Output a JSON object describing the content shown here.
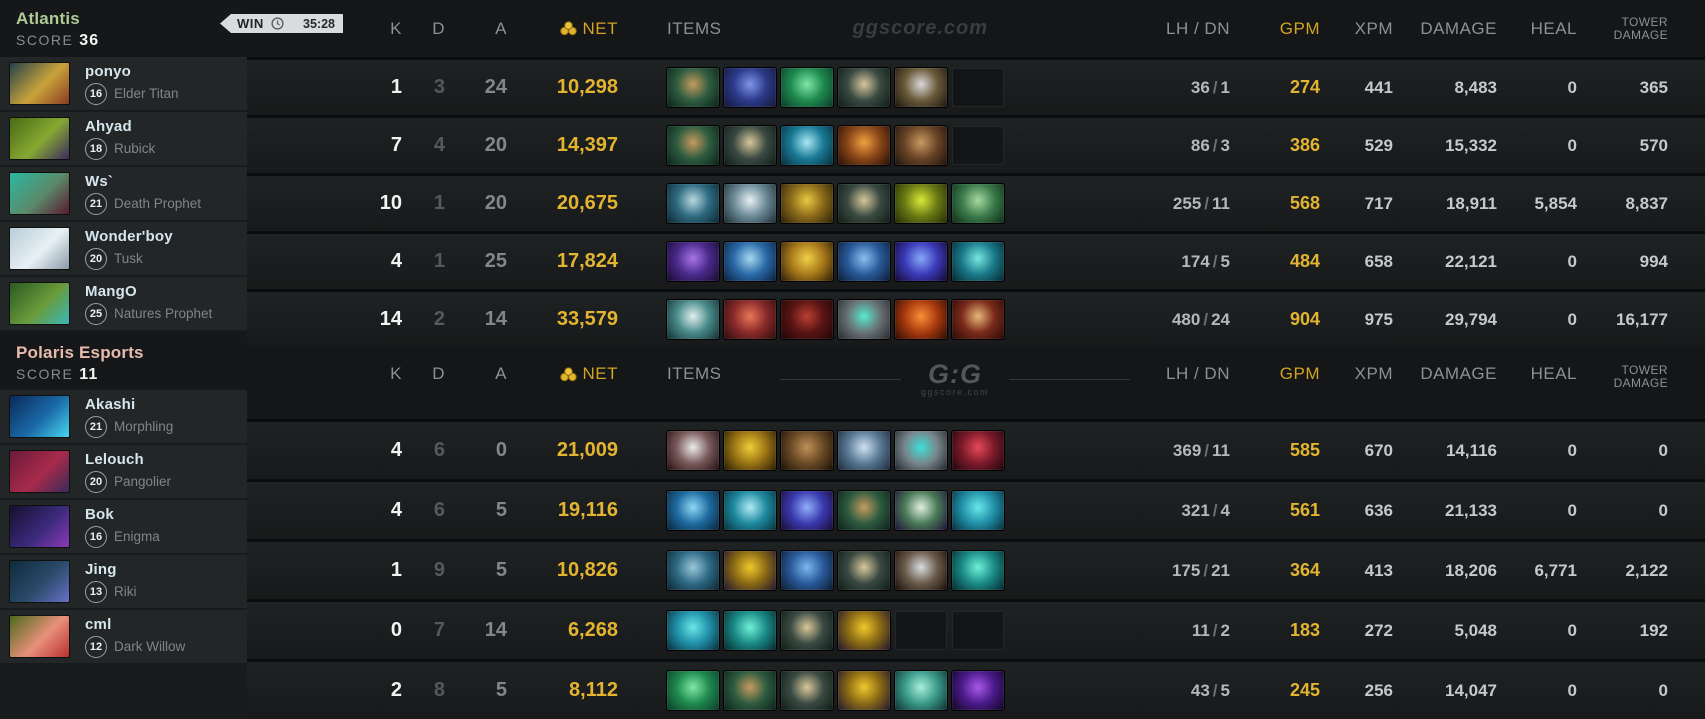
{
  "win_badge": {
    "label": "WIN",
    "time": "35:28"
  },
  "watermark": "ggscore.com",
  "logo": {
    "main": "G:G",
    "sub": "ggscore.com"
  },
  "score_label": "SCORE",
  "columns": {
    "k": "K",
    "d": "D",
    "a": "A",
    "net": "NET",
    "items": "ITEMS",
    "lhdn": "LH / DN",
    "gpm": "GPM",
    "xpm": "XPM",
    "damage": "DAMAGE",
    "heal": "HEAL",
    "tower1": "TOWER",
    "tower2": "DAMAGE"
  },
  "colors": {
    "team1": "#aecb97",
    "team2": "#e7bcae",
    "gold": "#e3b430"
  },
  "teams": [
    {
      "name": "Atlantis",
      "score": "36",
      "color": "#aecb97",
      "players": [
        {
          "player": "ponyo",
          "level": "16",
          "hero": "Elder Titan",
          "portrait": [
            "#24424a",
            "#c9a33a",
            "#8a3a22"
          ],
          "k": "1",
          "d": "3",
          "a": "24",
          "net": "10,298",
          "lh": "36",
          "dn": "1",
          "gpm": "274",
          "xpm": "441",
          "damage": "8,483",
          "heal": "0",
          "tower": "365",
          "items": [
            {
              "name": "meteor-hammer",
              "colors": [
                "#0a2018",
                "#2e5c40",
                "#c59a5e"
              ]
            },
            {
              "name": "glimmer-cape",
              "colors": [
                "#131735",
                "#2c3a8a",
                "#7f94e8"
              ]
            },
            {
              "name": "tranquil-boots",
              "colors": [
                "#0b3a2a",
                "#1f8a4e",
                "#7fe8a8"
              ]
            },
            {
              "name": "magic-wand",
              "colors": [
                "#0e1a16",
                "#3a4a42",
                "#d8c79a"
              ]
            },
            {
              "name": "silver-ring",
              "colors": [
                "#1a150e",
                "#6a5a3a",
                "#d8d8da"
              ]
            },
            null
          ]
        },
        {
          "player": "Ahyad",
          "level": "18",
          "hero": "Rubick",
          "portrait": [
            "#4a6a14",
            "#86a832",
            "#3a2a5e"
          ],
          "k": "7",
          "d": "4",
          "a": "20",
          "net": "14,397",
          "lh": "86",
          "dn": "3",
          "gpm": "386",
          "xpm": "529",
          "damage": "15,332",
          "heal": "0",
          "tower": "570",
          "items": [
            {
              "name": "meteor-hammer",
              "colors": [
                "#0a2018",
                "#2e5c40",
                "#c59a5e"
              ]
            },
            {
              "name": "magic-wand",
              "colors": [
                "#0e1a16",
                "#3a4a42",
                "#d8c79a"
              ]
            },
            {
              "name": "teal-blade",
              "colors": [
                "#072c38",
                "#1a7a96",
                "#a8e8f2"
              ]
            },
            {
              "name": "bronze-device",
              "colors": [
                "#230e05",
                "#8a4618",
                "#f0a040"
              ]
            },
            {
              "name": "brown-boots",
              "colors": [
                "#1c120a",
                "#6a4426",
                "#c89a62"
              ]
            },
            null
          ]
        },
        {
          "player": "Ws`",
          "level": "21",
          "hero": "Death Prophet",
          "portrait": [
            "#2ab8a0",
            "#5a8a6a",
            "#5a1a2e"
          ],
          "k": "10",
          "d": "1",
          "a": "20",
          "net": "20,675",
          "lh": "255",
          "dn": "11",
          "gpm": "568",
          "xpm": "717",
          "damage": "18,911",
          "heal": "5,854",
          "tower": "8,837",
          "items": [
            {
              "name": "blue-greaves",
              "colors": [
                "#0c2630",
                "#2e6a80",
                "#b8d8e0"
              ]
            },
            {
              "name": "ghost-jaw",
              "colors": [
                "#1c2a30",
                "#6a8a96",
                "#e8f0f2"
              ]
            },
            {
              "name": "golden-scepter",
              "colors": [
                "#2a2008",
                "#8a6a1a",
                "#e8c840"
              ]
            },
            {
              "name": "magic-wand",
              "colors": [
                "#0e1a16",
                "#3a4a42",
                "#d8c79a"
              ]
            },
            {
              "name": "radiance-blade",
              "colors": [
                "#222c06",
                "#6a7a14",
                "#d8e838"
              ]
            },
            {
              "name": "veil-helm",
              "colors": [
                "#0e2a16",
                "#3a7a4a",
                "#a8d8a0"
              ]
            }
          ]
        },
        {
          "player": "Wonder'boy",
          "level": "20",
          "hero": "Tusk",
          "portrait": [
            "#b8ccd8",
            "#e8f0f4",
            "#8a9aa8"
          ],
          "k": "4",
          "d": "1",
          "a": "25",
          "net": "17,824",
          "lh": "174",
          "dn": "5",
          "gpm": "484",
          "xpm": "658",
          "damage": "22,121",
          "heal": "0",
          "tower": "994",
          "items": [
            {
              "name": "purple-gauntlet",
              "colors": [
                "#170a2e",
                "#4a2a8a",
                "#a875e8"
              ]
            },
            {
              "name": "frost-sword",
              "colors": [
                "#0a1e3a",
                "#2a6aa8",
                "#a8d8f0"
              ]
            },
            {
              "name": "golden-falcon",
              "colors": [
                "#2a1c06",
                "#a8791a",
                "#f0d048"
              ]
            },
            {
              "name": "aether-lens",
              "colors": [
                "#0a1c34",
                "#2a5a9a",
                "#88c0f0"
              ]
            },
            {
              "name": "sapphire-dagger",
              "colors": [
                "#14082e",
                "#3a3ab8",
                "#88a8f8"
              ]
            },
            {
              "name": "cyclone-blade",
              "colors": [
                "#06242e",
                "#1a7a8a",
                "#78e8e0"
              ]
            }
          ]
        },
        {
          "player": "MangO",
          "level": "25",
          "hero": "Natures Prophet",
          "portrait": [
            "#2a5a22",
            "#6a9a3a",
            "#3ab8b8"
          ],
          "k": "14",
          "d": "2",
          "a": "14",
          "net": "33,579",
          "lh": "480",
          "dn": "24",
          "gpm": "904",
          "xpm": "975",
          "damage": "29,794",
          "heal": "0",
          "tower": "16,177",
          "items": [
            {
              "name": "frost-boot",
              "colors": [
                "#122e30",
                "#4a8a8a",
                "#e0f0ee"
              ]
            },
            {
              "name": "crimson-lance",
              "colors": [
                "#2a0c0c",
                "#8a2a2a",
                "#e87858"
              ]
            },
            {
              "name": "dark-vortex",
              "colors": [
                "#1c0606",
                "#5a1414",
                "#b84030"
              ]
            },
            {
              "name": "gem-orb",
              "colors": [
                "#26292c",
                "#6a7276",
                "#58e8d0"
              ]
            },
            {
              "name": "flame-core",
              "colors": [
                "#2a0a02",
                "#a83a0e",
                "#f89038"
              ]
            },
            {
              "name": "crimson-bow",
              "colors": [
                "#260806",
                "#7a2a1a",
                "#e8b878"
              ]
            }
          ]
        }
      ]
    },
    {
      "name": "Polaris Esports",
      "score": "11",
      "color": "#e7bcae",
      "players": [
        {
          "player": "Akashi",
          "level": "21",
          "hero": "Morphling",
          "portrait": [
            "#0a2a5a",
            "#1a6aa8",
            "#48d8f0"
          ],
          "k": "4",
          "d": "6",
          "a": "0",
          "net": "21,009",
          "lh": "369",
          "dn": "11",
          "gpm": "585",
          "xpm": "670",
          "damage": "14,116",
          "heal": "0",
          "tower": "0",
          "items": [
            {
              "name": "white-mask",
              "colors": [
                "#220e12",
                "#7a5a5a",
                "#ececec"
              ]
            },
            {
              "name": "golden-hatchling",
              "colors": [
                "#261a04",
                "#9a7414",
                "#f0cc38"
              ]
            },
            {
              "name": "leather-boots",
              "colors": [
                "#1a0f06",
                "#6a4a26",
                "#c09058"
              ]
            },
            {
              "name": "spectral-axe",
              "colors": [
                "#1c2838",
                "#5a7a96",
                "#cfe2ee"
              ]
            },
            {
              "name": "grey-cowl",
              "colors": [
                "#20262a",
                "#78868c",
                "#3ee0d8"
              ]
            },
            {
              "name": "crimson-talons",
              "colors": [
                "#1c060c",
                "#7a1a2a",
                "#e84858"
              ]
            }
          ]
        },
        {
          "player": "Lelouch",
          "level": "20",
          "hero": "Pangolier",
          "portrait": [
            "#6a1a3a",
            "#a82a4a",
            "#3a2a5a"
          ],
          "k": "4",
          "d": "6",
          "a": "5",
          "net": "19,116",
          "lh": "321",
          "dn": "4",
          "gpm": "561",
          "xpm": "636",
          "damage": "21,133",
          "heal": "0",
          "tower": "0",
          "items": [
            {
              "name": "blue-bottle",
              "colors": [
                "#0a2238",
                "#1e6ca0",
                "#90d8f8"
              ]
            },
            {
              "name": "teal-blade",
              "colors": [
                "#07303a",
                "#1e8aa0",
                "#b0ecf4"
              ]
            },
            {
              "name": "sapphire-scepter",
              "colors": [
                "#180a30",
                "#3a3ab0",
                "#90b0f8"
              ]
            },
            {
              "name": "meteor-hammer",
              "colors": [
                "#0a2018",
                "#2e5c40",
                "#c59a5e"
              ]
            },
            {
              "name": "ethereal-blade",
              "colors": [
                "#1e0e38",
                "#4a7a58",
                "#e0f0e0"
              ]
            },
            {
              "name": "azure-boots",
              "colors": [
                "#0a2a38",
                "#2090a8",
                "#68e8e8"
              ]
            }
          ]
        },
        {
          "player": "Bok",
          "level": "16",
          "hero": "Enigma",
          "portrait": [
            "#16102e",
            "#3a2a7a",
            "#8a3ab8"
          ],
          "k": "1",
          "d": "9",
          "a": "5",
          "net": "10,826",
          "lh": "175",
          "dn": "21",
          "gpm": "364",
          "xpm": "413",
          "damage": "18,206",
          "heal": "6,771",
          "tower": "2,122",
          "items": [
            {
              "name": "blue-greaves",
              "colors": [
                "#0c2430",
                "#2e6a86",
                "#9cc8d8"
              ]
            },
            {
              "name": "gold-bag",
              "colors": [
                "#201430",
                "#8a6a14",
                "#f0c82e"
              ]
            },
            {
              "name": "orb-bracer",
              "colors": [
                "#0a1a2c",
                "#2a5a9a",
                "#78b8f0"
              ]
            },
            {
              "name": "magic-wand",
              "colors": [
                "#0e1a16",
                "#3a4a42",
                "#d8c79a"
              ]
            },
            {
              "name": "steel-axe",
              "colors": [
                "#160e08",
                "#6a5a4a",
                "#d8dce0"
              ]
            },
            {
              "name": "teal-wave",
              "colors": [
                "#06262c",
                "#1a8a86",
                "#70f0d8"
              ]
            }
          ]
        },
        {
          "player": "Jing",
          "level": "13",
          "hero": "Riki",
          "portrait": [
            "#0e2a3a",
            "#2a4a6a",
            "#6a70c8"
          ],
          "k": "0",
          "d": "7",
          "a": "14",
          "net": "6,268",
          "lh": "11",
          "dn": "2",
          "gpm": "183",
          "xpm": "272",
          "damage": "5,048",
          "heal": "0",
          "tower": "192",
          "items": [
            {
              "name": "azure-boots",
              "colors": [
                "#0a2a38",
                "#2090a8",
                "#68e8e8"
              ]
            },
            {
              "name": "teal-wave",
              "colors": [
                "#06262c",
                "#1a8a86",
                "#70f0d8"
              ]
            },
            {
              "name": "magic-wand",
              "colors": [
                "#0e1a16",
                "#3a4a42",
                "#d8c79a"
              ]
            },
            {
              "name": "gold-bag",
              "colors": [
                "#201430",
                "#8a6a14",
                "#f0c82e"
              ]
            },
            null,
            null
          ]
        },
        {
          "player": "cml",
          "level": "12",
          "hero": "Dark Willow",
          "portrait": [
            "#4a6a1a",
            "#e8907a",
            "#b83030"
          ],
          "k": "2",
          "d": "8",
          "a": "5",
          "net": "8,112",
          "lh": "43",
          "dn": "5",
          "gpm": "245",
          "xpm": "256",
          "damage": "14,047",
          "heal": "0",
          "tower": "0",
          "items": [
            {
              "name": "tranquil-boots",
              "colors": [
                "#0b3a2a",
                "#1f8a4e",
                "#7fe8a8"
              ]
            },
            {
              "name": "meteor-hammer",
              "colors": [
                "#0a2018",
                "#2e5c40",
                "#c59a5e"
              ]
            },
            {
              "name": "magic-wand",
              "colors": [
                "#0e1a16",
                "#3a4a42",
                "#d8c79a"
              ]
            },
            {
              "name": "gold-bag",
              "colors": [
                "#201430",
                "#8a6a14",
                "#f0c82e"
              ]
            },
            {
              "name": "teal-creature",
              "colors": [
                "#0c2e30",
                "#3a9a8a",
                "#a8f0d8"
              ]
            },
            {
              "name": "violet-orb",
              "colors": [
                "#10061e",
                "#4a1a8a",
                "#a858e8"
              ]
            }
          ]
        }
      ]
    }
  ]
}
